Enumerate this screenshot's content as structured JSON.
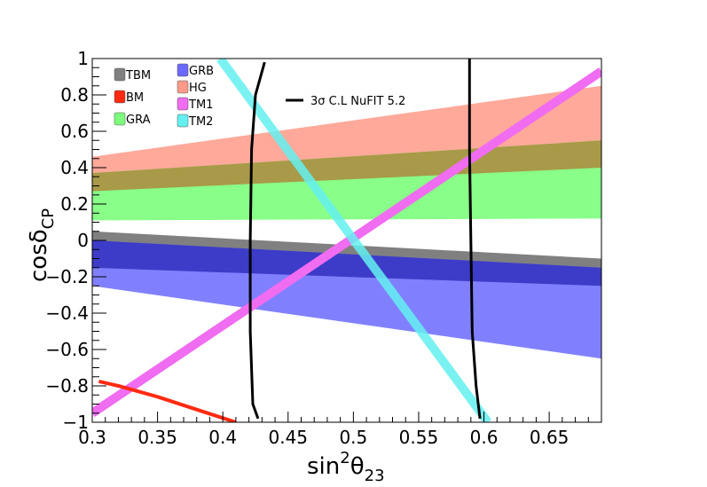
{
  "chart_data": {
    "type": "area",
    "xlabel": {
      "base": "sin",
      "sup": "2",
      "theta": "θ",
      "sub": "23"
    },
    "ylabel": {
      "base": "cosδ",
      "sub": "CP"
    },
    "xlim": [
      0.3,
      0.69
    ],
    "ylim": [
      -1,
      1
    ],
    "x_ticks": [
      {
        "value": 0.3,
        "label": "0.3"
      },
      {
        "value": 0.35,
        "label": "0.35"
      },
      {
        "value": 0.4,
        "label": "0.4"
      },
      {
        "value": 0.45,
        "label": "0.45"
      },
      {
        "value": 0.5,
        "label": "0.5"
      },
      {
        "value": 0.55,
        "label": "0.55"
      },
      {
        "value": 0.6,
        "label": "0.6"
      },
      {
        "value": 0.65,
        "label": "0.65"
      }
    ],
    "y_ticks": [
      {
        "value": -1,
        "label": "−1"
      },
      {
        "value": -0.8,
        "label": "−0.8"
      },
      {
        "value": -0.6,
        "label": "−0.6"
      },
      {
        "value": -0.4,
        "label": "−0.4"
      },
      {
        "value": -0.2,
        "label": "−0.2"
      },
      {
        "value": 0,
        "label": "0"
      },
      {
        "value": 0.2,
        "label": "0.2"
      },
      {
        "value": 0.4,
        "label": "0.4"
      },
      {
        "value": 0.6,
        "label": "0.6"
      },
      {
        "value": 0.8,
        "label": "0.8"
      },
      {
        "value": 1,
        "label": "1"
      }
    ],
    "bands": [
      {
        "name": "HG",
        "color": "#ff9a8a",
        "opacity": 0.85,
        "x": [
          0.3,
          0.69
        ],
        "lower": [
          0.27,
          0.4
        ],
        "upper": [
          0.46,
          0.85
        ]
      },
      {
        "name": "GRA",
        "color": "#7cff7c",
        "opacity": 0.9,
        "x": [
          0.3,
          0.69
        ],
        "lower": [
          0.11,
          0.12
        ],
        "upper": [
          0.37,
          0.55
        ]
      },
      {
        "name": "TBM",
        "color": "#808080",
        "opacity": 1.0,
        "x": [
          0.3,
          0.69
        ],
        "lower": [
          -0.15,
          -0.25
        ],
        "upper": [
          0.05,
          -0.1
        ]
      },
      {
        "name": "GRB",
        "color": "#6a6aff",
        "opacity": 0.85,
        "x": [
          0.3,
          0.69
        ],
        "lower": [
          -0.25,
          -0.65
        ],
        "upper": [
          0.0,
          -0.15
        ]
      }
    ],
    "overlap_bands": [
      {
        "name": "HG∩GRA",
        "color": "#a89a48",
        "x": [
          0.3,
          0.69
        ],
        "lower": [
          0.27,
          0.4
        ],
        "upper": [
          0.37,
          0.55
        ]
      },
      {
        "name": "TBM∩GRB",
        "color": "#3c3cc8",
        "x": [
          0.3,
          0.69
        ],
        "lower": [
          -0.15,
          -0.25
        ],
        "upper": [
          0.0,
          -0.15
        ]
      }
    ],
    "lines": [
      {
        "name": "TM1",
        "color": "#f06cf0",
        "width": 10,
        "opacity": 1.0,
        "x": [
          0.3,
          0.69
        ],
        "y": [
          -0.95,
          0.93
        ]
      },
      {
        "name": "TM2",
        "color": "#64f0f0",
        "width": 10,
        "opacity": 0.85,
        "x": [
          0.398,
          0.603
        ],
        "y": [
          1.0,
          -1.0
        ]
      },
      {
        "name": "BM",
        "color": "#ff2a10",
        "width": 4,
        "opacity": 1.0,
        "x": [
          0.305,
          0.32,
          0.35,
          0.38,
          0.41
        ],
        "y": [
          -0.775,
          -0.8,
          -0.86,
          -0.93,
          -1.0
        ]
      }
    ],
    "contours": [
      {
        "name": "left",
        "x": [
          0.432,
          0.425,
          0.422,
          0.421,
          0.421,
          0.423,
          0.427
        ],
        "y": [
          0.98,
          0.8,
          0.5,
          0.0,
          -0.5,
          -0.9,
          -0.98
        ]
      },
      {
        "name": "right",
        "x": [
          0.589,
          0.589,
          0.589,
          0.59,
          0.591,
          0.594,
          0.597
        ],
        "y": [
          1.0,
          0.8,
          0.5,
          0.0,
          -0.5,
          -0.8,
          -0.98
        ]
      }
    ],
    "annotation": "3σ C.L NuFIT 5.2",
    "legend": {
      "placement": "top-left",
      "column1": [
        {
          "name": "TBM",
          "color": "#808080"
        },
        {
          "name": "BM",
          "color": "#ff2a10"
        },
        {
          "name": "GRA",
          "color": "#7cff7c"
        }
      ],
      "column2": [
        {
          "name": "GRB",
          "color": "#6a6aff"
        },
        {
          "name": "HG",
          "color": "#ff9a8a"
        },
        {
          "name": "TM1",
          "color": "#f06cf0"
        },
        {
          "name": "TM2",
          "color": "#64f0f0"
        }
      ]
    }
  }
}
